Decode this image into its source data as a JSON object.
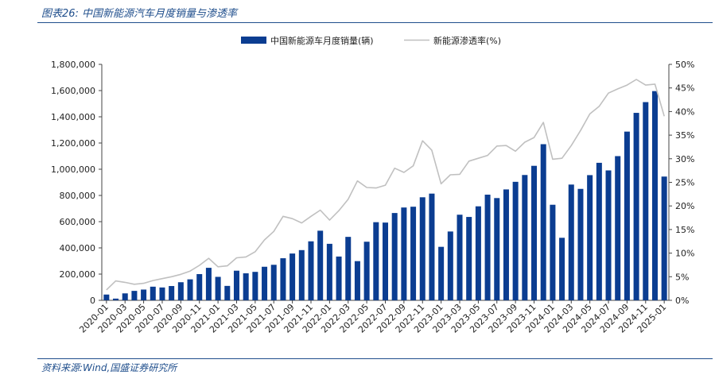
{
  "figure": {
    "title": "图表26:  中国新能源汽车月度销量与渗透率",
    "source": "资料来源:Wind,国盛证券研究所"
  },
  "colors": {
    "bar": "#0b3d91",
    "line": "#c0c0c0",
    "text": "#222222",
    "accent": "#1f4e8c"
  },
  "chart_data": {
    "type": "bar",
    "title": "",
    "grid": false,
    "legend_position": "top",
    "x": [
      "2020-01",
      "2020-02",
      "2020-03",
      "2020-04",
      "2020-05",
      "2020-06",
      "2020-07",
      "2020-08",
      "2020-09",
      "2020-10",
      "2020-11",
      "2020-12",
      "2021-01",
      "2021-02",
      "2021-03",
      "2021-04",
      "2021-05",
      "2021-06",
      "2021-07",
      "2021-08",
      "2021-09",
      "2021-10",
      "2021-11",
      "2021-12",
      "2022-01",
      "2022-02",
      "2022-03",
      "2022-04",
      "2022-05",
      "2022-06",
      "2022-07",
      "2022-08",
      "2022-09",
      "2022-10",
      "2022-11",
      "2022-12",
      "2023-01",
      "2023-02",
      "2023-03",
      "2023-04",
      "2023-05",
      "2023-06",
      "2023-07",
      "2023-08",
      "2023-09",
      "2023-10",
      "2023-11",
      "2023-12",
      "2024-01",
      "2024-02",
      "2024-03",
      "2024-04",
      "2024-05",
      "2024-06",
      "2024-07",
      "2024-08",
      "2024-09",
      "2024-10",
      "2024-11",
      "2024-12",
      "2025-01"
    ],
    "x_tick_labels": [
      "2020-01",
      "2020-03",
      "2020-05",
      "2020-07",
      "2020-09",
      "2020-11",
      "2021-01",
      "2021-03",
      "2021-05",
      "2021-07",
      "2021-09",
      "2021-11",
      "2022-01",
      "2022-03",
      "2022-05",
      "2022-07",
      "2022-09",
      "2022-11",
      "2023-01",
      "2023-03",
      "2023-05",
      "2023-07",
      "2023-09",
      "2023-11",
      "2024-01",
      "2024-03",
      "2024-05",
      "2024-07",
      "2024-09",
      "2024-11",
      "2025-01"
    ],
    "y_left": {
      "min": 0,
      "max": 1800000,
      "ticks": [
        "0",
        "200,000",
        "400,000",
        "600,000",
        "800,000",
        "1,000,000",
        "1,200,000",
        "1,400,000",
        "1,600,000",
        "1,800,000"
      ]
    },
    "y_right": {
      "min": 0,
      "max": 50,
      "ticks": [
        "0%",
        "5%",
        "10%",
        "15%",
        "20%",
        "25%",
        "30%",
        "35%",
        "40%",
        "45%",
        "50%"
      ]
    },
    "series": [
      {
        "name": "中国新能源车月度销量(辆)",
        "kind": "bar",
        "axis": "left",
        "values": [
          44000,
          13000,
          53000,
          72000,
          82000,
          104000,
          98000,
          109000,
          138000,
          160000,
          200000,
          248000,
          179000,
          110000,
          226000,
          206000,
          217000,
          256000,
          271000,
          321000,
          357000,
          383000,
          450000,
          531000,
          431000,
          334000,
          484000,
          299000,
          447000,
          596000,
          593000,
          666000,
          708000,
          714000,
          786000,
          814000,
          408000,
          525000,
          653000,
          636000,
          717000,
          806000,
          780000,
          846000,
          904000,
          956000,
          1026000,
          1191000,
          729000,
          477000,
          883000,
          850000,
          955000,
          1049000,
          991000,
          1100000,
          1287000,
          1430000,
          1512000,
          1596000,
          944000
        ]
      },
      {
        "name": "新能源渗透率(%)",
        "kind": "line",
        "axis": "right",
        "values": [
          2.2,
          4.1,
          3.8,
          3.4,
          3.6,
          4.2,
          4.6,
          5.0,
          5.5,
          6.2,
          7.4,
          8.9,
          7.1,
          7.3,
          9.0,
          9.2,
          10.3,
          12.8,
          14.6,
          17.8,
          17.3,
          16.4,
          17.8,
          19.1,
          17.0,
          19.0,
          21.4,
          25.3,
          23.9,
          23.8,
          24.4,
          28.0,
          27.1,
          28.5,
          33.8,
          31.8,
          24.7,
          26.6,
          26.7,
          29.5,
          30.1,
          30.7,
          32.7,
          32.8,
          31.6,
          33.5,
          34.5,
          37.7,
          29.9,
          30.1,
          32.8,
          36.0,
          39.5,
          41.1,
          43.9,
          44.8,
          45.6,
          46.8,
          45.6,
          45.8,
          39.0
        ]
      }
    ]
  }
}
